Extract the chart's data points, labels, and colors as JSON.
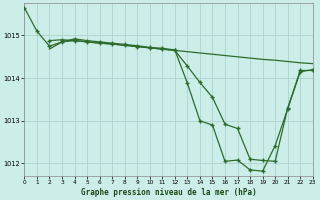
{
  "background_color": "#cceee8",
  "plot_bg_color": "#cceee8",
  "grid_color": "#aad4ce",
  "line_color": "#2d6b2d",
  "title": "Graphe pression niveau de la mer (hPa)",
  "xlim": [
    0,
    23
  ],
  "ylim": [
    1011.7,
    1015.75
  ],
  "yticks": [
    1012,
    1013,
    1014,
    1015
  ],
  "xticks": [
    0,
    1,
    2,
    3,
    4,
    5,
    6,
    7,
    8,
    9,
    10,
    11,
    12,
    13,
    14,
    15,
    16,
    17,
    18,
    19,
    20,
    21,
    22,
    23
  ],
  "series1_x": [
    0,
    1,
    2,
    3,
    4,
    5,
    6,
    7,
    8,
    9,
    10,
    11,
    12,
    13,
    14,
    15,
    16,
    17,
    18,
    19,
    20,
    21,
    22,
    23
  ],
  "series1_y": [
    1015.65,
    1015.1,
    1014.75,
    1014.85,
    1014.92,
    1014.88,
    1014.85,
    1014.82,
    1014.79,
    1014.76,
    1014.72,
    1014.7,
    1014.66,
    1013.88,
    1013.0,
    1012.9,
    1012.05,
    1012.08,
    1011.85,
    1011.82,
    1012.42,
    1013.28,
    1014.15,
    1014.2
  ],
  "series2_x": [
    2,
    3,
    4,
    5,
    6,
    7,
    8,
    9,
    10,
    11,
    12,
    13,
    14,
    15,
    16,
    17,
    18,
    19,
    20,
    21,
    22,
    23
  ],
  "series2_y": [
    1014.88,
    1014.9,
    1014.88,
    1014.85,
    1014.82,
    1014.8,
    1014.77,
    1014.74,
    1014.71,
    1014.68,
    1014.65,
    1014.28,
    1013.9,
    1013.55,
    1012.92,
    1012.82,
    1012.1,
    1012.07,
    1012.05,
    1013.3,
    1014.18,
    1014.18
  ],
  "series3_x": [
    2,
    3,
    4,
    5,
    6,
    7,
    8,
    9,
    10,
    11,
    12,
    13,
    14,
    15,
    16,
    17,
    18,
    19,
    20,
    21,
    22,
    23
  ],
  "series3_y": [
    1014.68,
    1014.85,
    1014.88,
    1014.85,
    1014.82,
    1014.8,
    1014.77,
    1014.74,
    1014.71,
    1014.68,
    1014.65,
    1014.62,
    1014.59,
    1014.56,
    1014.53,
    1014.5,
    1014.47,
    1014.44,
    1014.42,
    1014.39,
    1014.36,
    1014.34
  ]
}
